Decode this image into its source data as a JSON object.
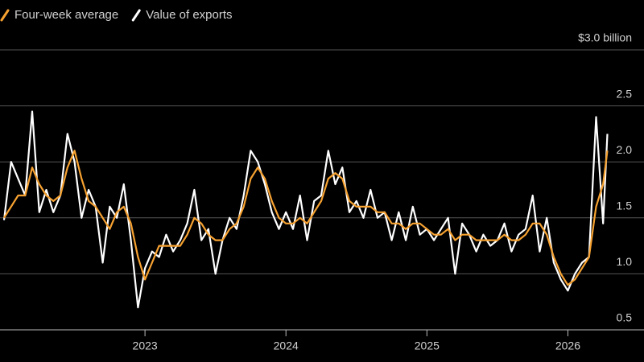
{
  "chart_data": {
    "type": "line",
    "x": [
      2022.0,
      2022.05,
      2022.1,
      2022.15,
      2022.2,
      2022.25,
      2022.3,
      2022.35,
      2022.4,
      2022.45,
      2022.5,
      2022.55,
      2022.6,
      2022.65,
      2022.7,
      2022.75,
      2022.8,
      2022.85,
      2022.9,
      2022.95,
      2023.0,
      2023.05,
      2023.1,
      2023.15,
      2023.2,
      2023.25,
      2023.3,
      2023.35,
      2023.4,
      2023.45,
      2023.5,
      2023.55,
      2023.6,
      2023.65,
      2023.7,
      2023.75,
      2023.8,
      2023.85,
      2023.9,
      2023.95,
      2024.0,
      2024.05,
      2024.1,
      2024.15,
      2024.2,
      2024.25,
      2024.3,
      2024.35,
      2024.4,
      2024.45,
      2024.5,
      2024.55,
      2024.6,
      2024.65,
      2024.7,
      2024.75,
      2024.8,
      2024.85,
      2024.9,
      2024.95,
      2025.0,
      2025.05,
      2025.1,
      2025.15,
      2025.2,
      2025.25,
      2025.3,
      2025.35,
      2025.4,
      2025.45,
      2025.5,
      2025.55,
      2025.6,
      2025.65,
      2025.7,
      2025.75,
      2025.8,
      2025.85,
      2025.9,
      2025.95,
      2026.0,
      2026.05,
      2026.1,
      2026.15,
      2026.2,
      2026.25,
      2026.28
    ],
    "series": [
      {
        "name": "Four-week average",
        "color": "#f7a231",
        "values": [
          1.5,
          1.6,
          1.7,
          1.7,
          1.95,
          1.8,
          1.7,
          1.65,
          1.7,
          1.95,
          2.1,
          1.85,
          1.65,
          1.6,
          1.5,
          1.4,
          1.55,
          1.6,
          1.45,
          1.15,
          0.95,
          1.1,
          1.25,
          1.25,
          1.25,
          1.25,
          1.35,
          1.5,
          1.45,
          1.35,
          1.3,
          1.3,
          1.4,
          1.45,
          1.6,
          1.85,
          1.95,
          1.85,
          1.65,
          1.5,
          1.45,
          1.45,
          1.5,
          1.45,
          1.55,
          1.65,
          1.85,
          1.9,
          1.85,
          1.65,
          1.6,
          1.6,
          1.6,
          1.55,
          1.55,
          1.45,
          1.45,
          1.4,
          1.45,
          1.45,
          1.4,
          1.35,
          1.35,
          1.4,
          1.3,
          1.35,
          1.35,
          1.3,
          1.3,
          1.3,
          1.3,
          1.35,
          1.3,
          1.3,
          1.35,
          1.45,
          1.45,
          1.35,
          1.15,
          1.0,
          0.9,
          0.95,
          1.05,
          1.15,
          1.6,
          1.8,
          2.1
        ]
      },
      {
        "name": "Value of exports",
        "color": "#ffffff",
        "values": [
          1.48,
          2.0,
          1.85,
          1.7,
          2.45,
          1.55,
          1.75,
          1.55,
          1.7,
          2.25,
          2.0,
          1.5,
          1.75,
          1.6,
          1.1,
          1.6,
          1.5,
          1.8,
          1.3,
          0.7,
          1.05,
          1.2,
          1.15,
          1.35,
          1.2,
          1.3,
          1.45,
          1.75,
          1.3,
          1.4,
          1.0,
          1.3,
          1.5,
          1.4,
          1.7,
          2.1,
          2.0,
          1.8,
          1.55,
          1.4,
          1.55,
          1.4,
          1.7,
          1.3,
          1.65,
          1.7,
          2.1,
          1.8,
          1.95,
          1.55,
          1.65,
          1.5,
          1.75,
          1.5,
          1.55,
          1.3,
          1.55,
          1.3,
          1.6,
          1.35,
          1.4,
          1.3,
          1.4,
          1.5,
          1.0,
          1.45,
          1.35,
          1.2,
          1.35,
          1.25,
          1.3,
          1.45,
          1.2,
          1.35,
          1.4,
          1.7,
          1.2,
          1.5,
          1.1,
          0.95,
          0.85,
          1.0,
          1.1,
          1.15,
          2.4,
          1.45,
          2.25
        ]
      }
    ],
    "xlim": [
      2022,
      2026.54
    ],
    "xticks": [
      2023,
      2024,
      2025,
      2026
    ],
    "ylim": [
      0.5,
      3.0
    ],
    "yticks": [
      0.5,
      {
        "value": 1,
        "label": "1.0"
      },
      1.5,
      {
        "value": 2,
        "label": "2.0"
      },
      2.5,
      {
        "value": 3,
        "label": "$3.0 billion"
      }
    ],
    "grid": true
  }
}
